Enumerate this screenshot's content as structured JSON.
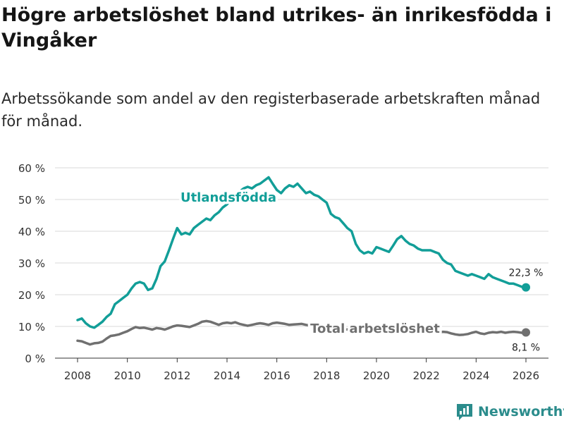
{
  "title": "Högre arbetslöshet bland utrikes- än inrikesfödda i Vingåker",
  "subtitle": "Arbetssökande som andel av den registerbaserade arbetskraften månad för månad.",
  "brand": {
    "name": "Newsworthy"
  },
  "colors": {
    "foreign": "#129e98",
    "total": "#707070",
    "grid": "#d8d8d8",
    "axis": "#333333",
    "brand": "#2b8c8c"
  },
  "chart_data": {
    "type": "line",
    "ylim": [
      0,
      60
    ],
    "xlim": [
      2007.5,
      2027
    ],
    "yticks": [
      0,
      10,
      20,
      30,
      40,
      50,
      60
    ],
    "ytick_labels": [
      "0 %",
      "10 %",
      "20 %",
      "30 %",
      "40 %",
      "50 %",
      "60 %"
    ],
    "xticks": [
      2008,
      2010,
      2012,
      2014,
      2016,
      2018,
      2020,
      2022,
      2024,
      2026
    ],
    "xtick_labels": [
      "2008",
      "2010",
      "2012",
      "2014",
      "2016",
      "2018",
      "2020",
      "2022",
      "2024",
      "2026"
    ],
    "grid": true,
    "series": [
      {
        "name": "Utlandsfödda",
        "color": "#129e98",
        "end_label": "22,3 %",
        "points": [
          [
            2008.0,
            12.0
          ],
          [
            2008.17,
            12.5
          ],
          [
            2008.33,
            11.0
          ],
          [
            2008.5,
            10.0
          ],
          [
            2008.67,
            9.6
          ],
          [
            2008.83,
            10.5
          ],
          [
            2009.0,
            11.5
          ],
          [
            2009.17,
            13.0
          ],
          [
            2009.33,
            14.0
          ],
          [
            2009.5,
            17.0
          ],
          [
            2009.67,
            18.0
          ],
          [
            2009.83,
            19.0
          ],
          [
            2010.0,
            20.0
          ],
          [
            2010.17,
            22.0
          ],
          [
            2010.33,
            23.5
          ],
          [
            2010.5,
            24.0
          ],
          [
            2010.67,
            23.5
          ],
          [
            2010.83,
            21.5
          ],
          [
            2011.0,
            22.0
          ],
          [
            2011.17,
            25.0
          ],
          [
            2011.33,
            29.0
          ],
          [
            2011.5,
            30.5
          ],
          [
            2011.67,
            34.0
          ],
          [
            2011.83,
            37.5
          ],
          [
            2012.0,
            41.0
          ],
          [
            2012.17,
            39.0
          ],
          [
            2012.33,
            39.5
          ],
          [
            2012.5,
            39.0
          ],
          [
            2012.67,
            41.0
          ],
          [
            2012.83,
            42.0
          ],
          [
            2013.0,
            43.0
          ],
          [
            2013.17,
            44.0
          ],
          [
            2013.33,
            43.5
          ],
          [
            2013.5,
            45.0
          ],
          [
            2013.67,
            46.0
          ],
          [
            2013.83,
            47.5
          ],
          [
            2014.0,
            48.5
          ],
          [
            2014.17,
            50.0
          ],
          [
            2014.33,
            51.5
          ],
          [
            2014.5,
            52.5
          ],
          [
            2014.67,
            53.5
          ],
          [
            2014.83,
            54.0
          ],
          [
            2015.0,
            53.5
          ],
          [
            2015.17,
            54.5
          ],
          [
            2015.33,
            55.0
          ],
          [
            2015.5,
            56.0
          ],
          [
            2015.67,
            57.0
          ],
          [
            2015.83,
            55.0
          ],
          [
            2016.0,
            53.0
          ],
          [
            2016.17,
            52.0
          ],
          [
            2016.33,
            53.5
          ],
          [
            2016.5,
            54.5
          ],
          [
            2016.67,
            54.0
          ],
          [
            2016.83,
            55.0
          ],
          [
            2017.0,
            53.5
          ],
          [
            2017.17,
            52.0
          ],
          [
            2017.33,
            52.5
          ],
          [
            2017.5,
            51.5
          ],
          [
            2017.67,
            51.0
          ],
          [
            2017.83,
            50.0
          ],
          [
            2018.0,
            49.0
          ],
          [
            2018.17,
            45.5
          ],
          [
            2018.33,
            44.5
          ],
          [
            2018.5,
            44.0
          ],
          [
            2018.67,
            42.5
          ],
          [
            2018.83,
            41.0
          ],
          [
            2019.0,
            40.0
          ],
          [
            2019.17,
            36.0
          ],
          [
            2019.33,
            34.0
          ],
          [
            2019.5,
            33.0
          ],
          [
            2019.67,
            33.5
          ],
          [
            2019.83,
            33.0
          ],
          [
            2020.0,
            35.0
          ],
          [
            2020.17,
            34.5
          ],
          [
            2020.33,
            34.0
          ],
          [
            2020.5,
            33.5
          ],
          [
            2020.67,
            35.5
          ],
          [
            2020.83,
            37.5
          ],
          [
            2021.0,
            38.5
          ],
          [
            2021.17,
            37.0
          ],
          [
            2021.33,
            36.0
          ],
          [
            2021.5,
            35.5
          ],
          [
            2021.67,
            34.5
          ],
          [
            2021.83,
            34.0
          ],
          [
            2022.0,
            34.0
          ],
          [
            2022.17,
            34.0
          ],
          [
            2022.33,
            33.5
          ],
          [
            2022.5,
            33.0
          ],
          [
            2022.67,
            31.0
          ],
          [
            2022.83,
            30.0
          ],
          [
            2023.0,
            29.5
          ],
          [
            2023.17,
            27.5
          ],
          [
            2023.33,
            27.0
          ],
          [
            2023.5,
            26.5
          ],
          [
            2023.67,
            26.0
          ],
          [
            2023.83,
            26.5
          ],
          [
            2024.0,
            26.0
          ],
          [
            2024.17,
            25.5
          ],
          [
            2024.33,
            25.0
          ],
          [
            2024.5,
            26.5
          ],
          [
            2024.67,
            25.5
          ],
          [
            2024.83,
            25.0
          ],
          [
            2025.0,
            24.5
          ],
          [
            2025.17,
            24.0
          ],
          [
            2025.33,
            23.5
          ],
          [
            2025.5,
            23.5
          ],
          [
            2025.67,
            23.0
          ],
          [
            2025.83,
            22.5
          ],
          [
            2026.0,
            22.3
          ]
        ]
      },
      {
        "name": "Total arbetslöshet",
        "color": "#707070",
        "end_label": "8,1 %",
        "points": [
          [
            2008.0,
            5.5
          ],
          [
            2008.17,
            5.3
          ],
          [
            2008.33,
            4.8
          ],
          [
            2008.5,
            4.3
          ],
          [
            2008.67,
            4.7
          ],
          [
            2008.83,
            4.8
          ],
          [
            2009.0,
            5.2
          ],
          [
            2009.17,
            6.2
          ],
          [
            2009.33,
            7.0
          ],
          [
            2009.5,
            7.2
          ],
          [
            2009.67,
            7.5
          ],
          [
            2009.83,
            8.0
          ],
          [
            2010.0,
            8.5
          ],
          [
            2010.17,
            9.2
          ],
          [
            2010.33,
            9.8
          ],
          [
            2010.5,
            9.5
          ],
          [
            2010.67,
            9.6
          ],
          [
            2010.83,
            9.3
          ],
          [
            2011.0,
            9.0
          ],
          [
            2011.17,
            9.5
          ],
          [
            2011.33,
            9.3
          ],
          [
            2011.5,
            9.0
          ],
          [
            2011.67,
            9.5
          ],
          [
            2011.83,
            10.0
          ],
          [
            2012.0,
            10.3
          ],
          [
            2012.17,
            10.2
          ],
          [
            2012.33,
            10.0
          ],
          [
            2012.5,
            9.8
          ],
          [
            2012.67,
            10.3
          ],
          [
            2012.83,
            10.8
          ],
          [
            2013.0,
            11.5
          ],
          [
            2013.17,
            11.7
          ],
          [
            2013.33,
            11.5
          ],
          [
            2013.5,
            11.0
          ],
          [
            2013.67,
            10.5
          ],
          [
            2013.83,
            11.0
          ],
          [
            2014.0,
            11.2
          ],
          [
            2014.17,
            11.0
          ],
          [
            2014.33,
            11.3
          ],
          [
            2014.5,
            10.8
          ],
          [
            2014.67,
            10.5
          ],
          [
            2014.83,
            10.2
          ],
          [
            2015.0,
            10.5
          ],
          [
            2015.17,
            10.8
          ],
          [
            2015.33,
            11.0
          ],
          [
            2015.5,
            10.8
          ],
          [
            2015.67,
            10.5
          ],
          [
            2015.83,
            11.0
          ],
          [
            2016.0,
            11.2
          ],
          [
            2016.17,
            11.0
          ],
          [
            2016.33,
            10.8
          ],
          [
            2016.5,
            10.5
          ],
          [
            2016.67,
            10.6
          ],
          [
            2016.83,
            10.7
          ],
          [
            2017.0,
            10.8
          ],
          [
            2017.17,
            10.5
          ],
          [
            2017.33,
            10.3
          ],
          [
            2017.5,
            10.2
          ],
          [
            2017.67,
            10.0
          ],
          [
            2017.83,
            9.9
          ],
          [
            2018.0,
            9.8
          ],
          [
            2018.17,
            9.6
          ],
          [
            2018.33,
            9.5
          ],
          [
            2018.5,
            9.3
          ],
          [
            2018.67,
            9.2
          ],
          [
            2018.83,
            9.0
          ],
          [
            2019.0,
            8.9
          ],
          [
            2019.17,
            8.8
          ],
          [
            2019.33,
            8.7
          ],
          [
            2019.5,
            8.6
          ],
          [
            2019.67,
            8.5
          ],
          [
            2019.83,
            8.6
          ],
          [
            2020.0,
            8.7
          ],
          [
            2020.17,
            8.8
          ],
          [
            2020.33,
            8.9
          ],
          [
            2020.5,
            8.8
          ],
          [
            2020.67,
            8.7
          ],
          [
            2020.83,
            8.6
          ],
          [
            2021.0,
            8.5
          ],
          [
            2021.17,
            8.4
          ],
          [
            2021.33,
            8.3
          ],
          [
            2021.5,
            8.2
          ],
          [
            2021.67,
            8.1
          ],
          [
            2021.83,
            8.0
          ],
          [
            2022.0,
            8.0
          ],
          [
            2022.17,
            8.0
          ],
          [
            2022.33,
            8.1
          ],
          [
            2022.5,
            8.1
          ],
          [
            2022.67,
            8.3
          ],
          [
            2022.83,
            8.2
          ],
          [
            2023.0,
            7.8
          ],
          [
            2023.17,
            7.5
          ],
          [
            2023.33,
            7.3
          ],
          [
            2023.5,
            7.4
          ],
          [
            2023.67,
            7.6
          ],
          [
            2023.83,
            8.0
          ],
          [
            2024.0,
            8.3
          ],
          [
            2024.17,
            7.8
          ],
          [
            2024.33,
            7.6
          ],
          [
            2024.5,
            8.0
          ],
          [
            2024.67,
            8.2
          ],
          [
            2024.83,
            8.1
          ],
          [
            2025.0,
            8.3
          ],
          [
            2025.17,
            8.0
          ],
          [
            2025.33,
            8.2
          ],
          [
            2025.5,
            8.3
          ],
          [
            2025.67,
            8.2
          ],
          [
            2025.83,
            8.0
          ],
          [
            2026.0,
            8.1
          ]
        ]
      }
    ]
  }
}
